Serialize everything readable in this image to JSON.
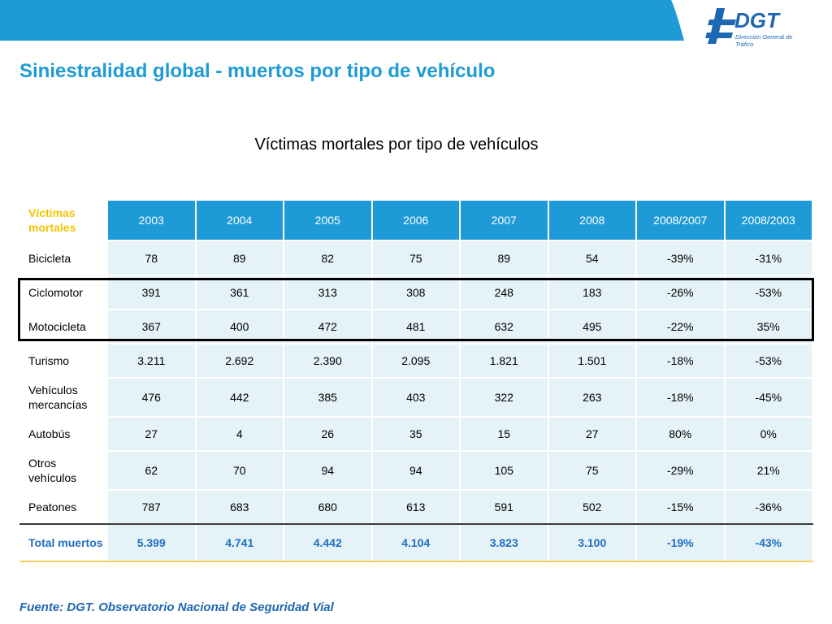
{
  "header": {
    "logo_text": "DGT",
    "logo_subtitle": "Dirección General de Tráfico",
    "title": "Siniestralidad global - muertos por tipo de vehículo"
  },
  "subtitle": "Víctimas mortales por tipo de vehículos",
  "colors": {
    "accent_blue": "#1e9ad6",
    "cell_bg": "#e5f2f8",
    "header_label": "#f2c400",
    "total_text": "#1e6fc0"
  },
  "table": {
    "corner_label": "Víctimas mortales",
    "columns": [
      "2003",
      "2004",
      "2005",
      "2006",
      "2007",
      "2008",
      "2008/2007",
      "2008/2003"
    ],
    "rows": [
      {
        "label": "Bicicleta",
        "values": [
          "78",
          "89",
          "82",
          "75",
          "89",
          "54",
          "-39%",
          "-31%"
        ]
      },
      {
        "label": "Ciclomotor",
        "values": [
          "391",
          "361",
          "313",
          "308",
          "248",
          "183",
          "-26%",
          "-53%"
        ]
      },
      {
        "label": "Motocicleta",
        "values": [
          "367",
          "400",
          "472",
          "481",
          "632",
          "495",
          "-22%",
          "35%"
        ]
      },
      {
        "label": "Turismo",
        "values": [
          "3.211",
          "2.692",
          "2.390",
          "2.095",
          "1.821",
          "1.501",
          "-18%",
          "-53%"
        ]
      },
      {
        "label": "Vehículos mercancías",
        "values": [
          "476",
          "442",
          "385",
          "403",
          "322",
          "263",
          "-18%",
          "-45%"
        ]
      },
      {
        "label": "Autobús",
        "values": [
          "27",
          "4",
          "26",
          "35",
          "15",
          "27",
          "80%",
          "0%"
        ]
      },
      {
        "label": "Otros vehículos",
        "values": [
          "62",
          "70",
          "94",
          "94",
          "105",
          "75",
          "-29%",
          "21%"
        ]
      },
      {
        "label": "Peatones",
        "values": [
          "787",
          "683",
          "680",
          "613",
          "591",
          "502",
          "-15%",
          "-36%"
        ]
      }
    ],
    "total": {
      "label": "Total muertos",
      "values": [
        "5.399",
        "4.741",
        "4.442",
        "4.104",
        "3.823",
        "3.100",
        "-19%",
        "-43%"
      ]
    }
  },
  "source": "Fuente: DGT. Observatorio Nacional de Seguridad Vial"
}
